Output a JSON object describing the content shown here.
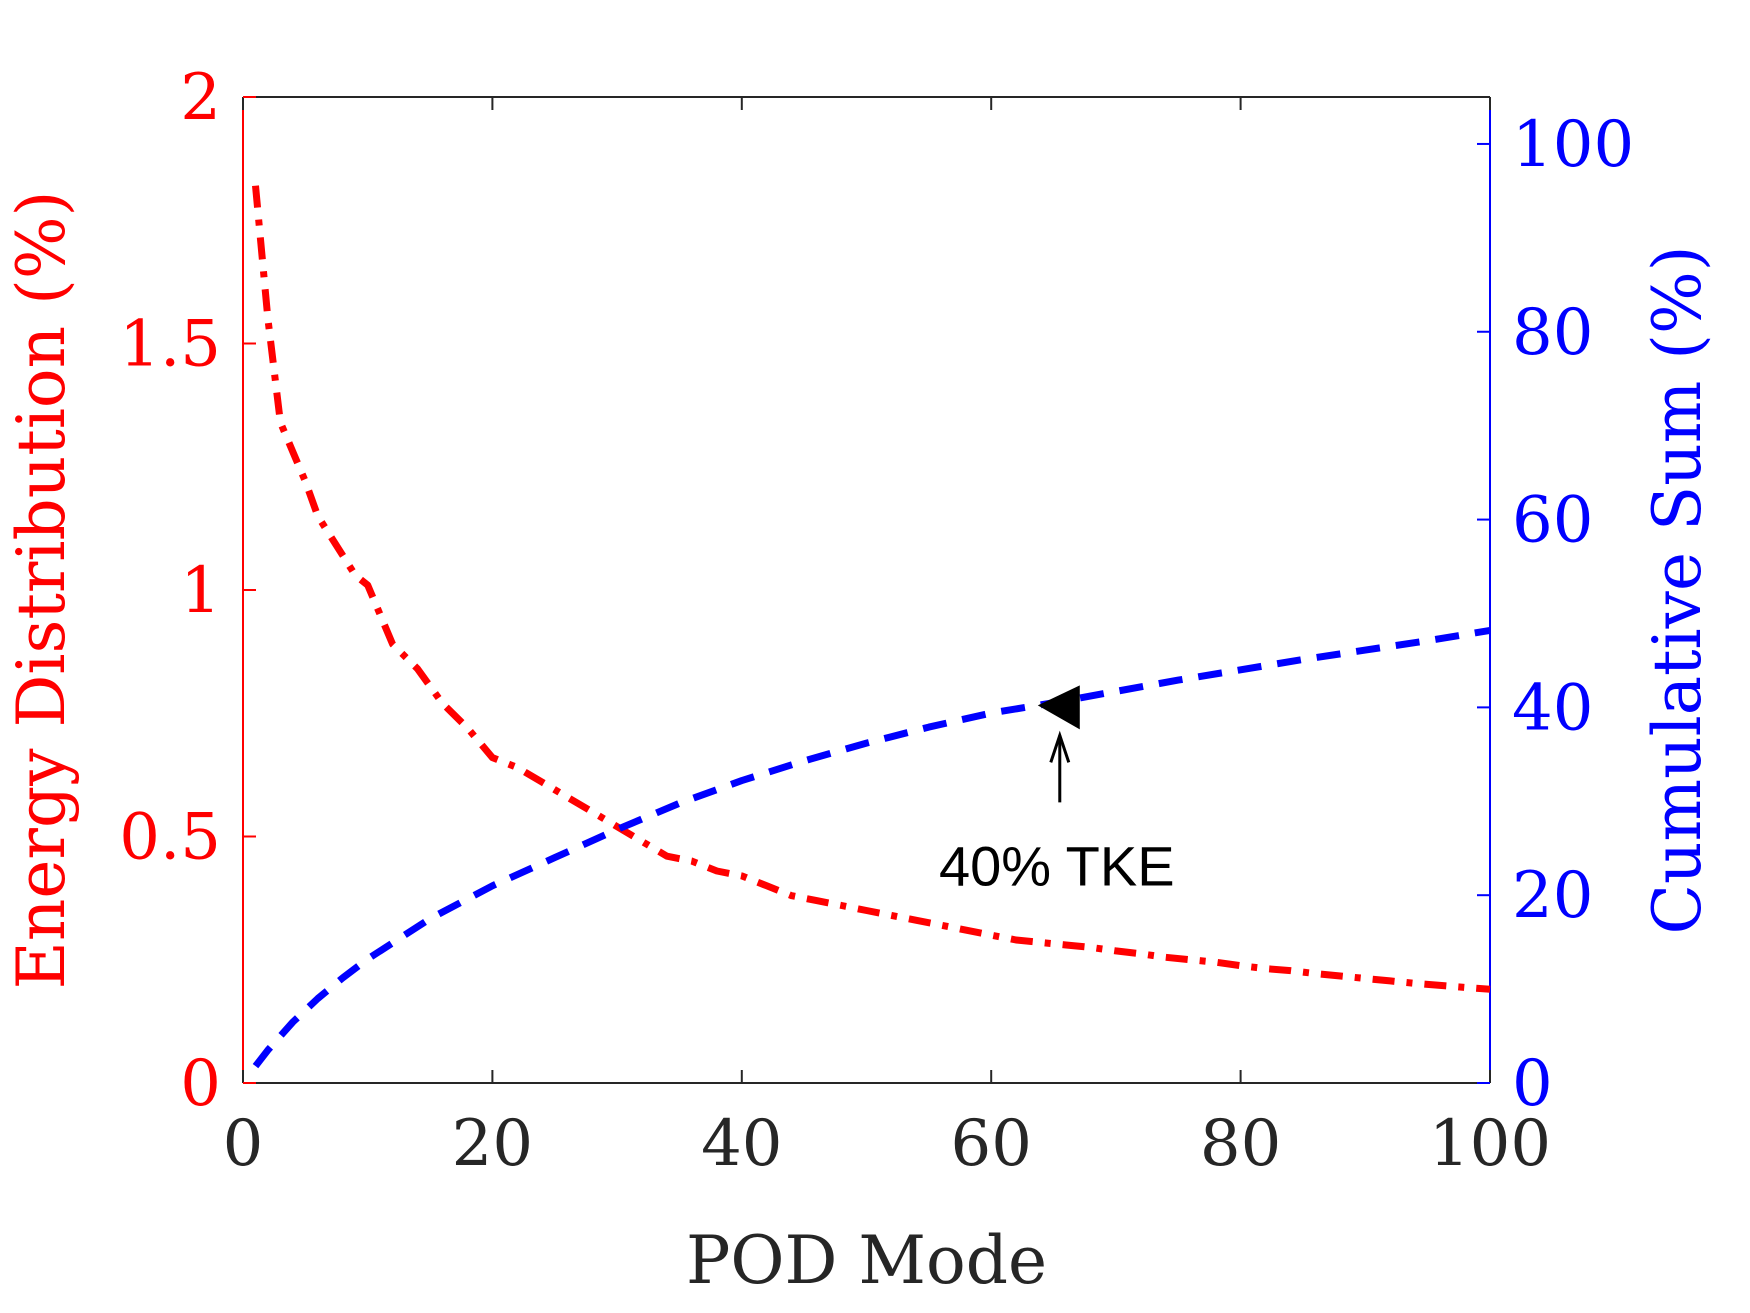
{
  "chart_data": {
    "type": "line",
    "title": "",
    "xlabel": "POD Mode",
    "xlim": [
      0,
      100
    ],
    "xticks": [
      0,
      20,
      40,
      60,
      80,
      100
    ],
    "left_axis": {
      "label": "Energy Distribution (%)",
      "lim": [
        0,
        2
      ],
      "ticks": [
        0,
        0.5,
        1,
        1.5,
        2
      ],
      "color": "#ff0000"
    },
    "right_axis": {
      "label": "Cumulative Sum (%)",
      "lim": [
        0,
        105
      ],
      "ticks": [
        0,
        20,
        40,
        60,
        80,
        100
      ],
      "color": "#0000ff"
    },
    "series": [
      {
        "name": "Energy Distribution",
        "axis": "left",
        "style": "dash-dot",
        "color": "#ff0000",
        "x": [
          1,
          2,
          3,
          4,
          5,
          6,
          7,
          8,
          9,
          10,
          12,
          14,
          16,
          18,
          20,
          22,
          24,
          26,
          28,
          30,
          32,
          34,
          36,
          38,
          40,
          42,
          44,
          46,
          48,
          50,
          52,
          54,
          56,
          58,
          60,
          62,
          64,
          66,
          68,
          70,
          72,
          74,
          76,
          78,
          80,
          82,
          84,
          86,
          88,
          90,
          92,
          94,
          96,
          98,
          100
        ],
        "y": [
          1.82,
          1.55,
          1.34,
          1.28,
          1.22,
          1.15,
          1.11,
          1.07,
          1.03,
          1.01,
          0.89,
          0.84,
          0.77,
          0.72,
          0.66,
          0.64,
          0.61,
          0.58,
          0.55,
          0.52,
          0.49,
          0.46,
          0.45,
          0.43,
          0.42,
          0.4,
          0.38,
          0.37,
          0.36,
          0.35,
          0.34,
          0.33,
          0.32,
          0.31,
          0.3,
          0.29,
          0.285,
          0.28,
          0.275,
          0.268,
          0.262,
          0.255,
          0.25,
          0.245,
          0.238,
          0.232,
          0.228,
          0.222,
          0.217,
          0.212,
          0.207,
          0.202,
          0.198,
          0.194,
          0.19
        ]
      },
      {
        "name": "Cumulative Sum",
        "axis": "right",
        "style": "dashed",
        "color": "#0000ff",
        "x": [
          1,
          2,
          4,
          6,
          8,
          10,
          15,
          20,
          25,
          30,
          35,
          40,
          45,
          50,
          55,
          60,
          65,
          70,
          75,
          80,
          85,
          90,
          95,
          100
        ],
        "y": [
          1.8,
          3.5,
          6.5,
          9.0,
          11.2,
          13.2,
          17.5,
          21.0,
          24.0,
          27.0,
          29.8,
          32.2,
          34.3,
          36.2,
          37.9,
          39.4,
          40.5,
          41.7,
          42.9,
          44.0,
          45.1,
          46.1,
          47.1,
          48.2
        ]
      }
    ],
    "annotation": {
      "text": "40% TKE",
      "marker_x": 65.5,
      "marker_y": 40
    }
  }
}
